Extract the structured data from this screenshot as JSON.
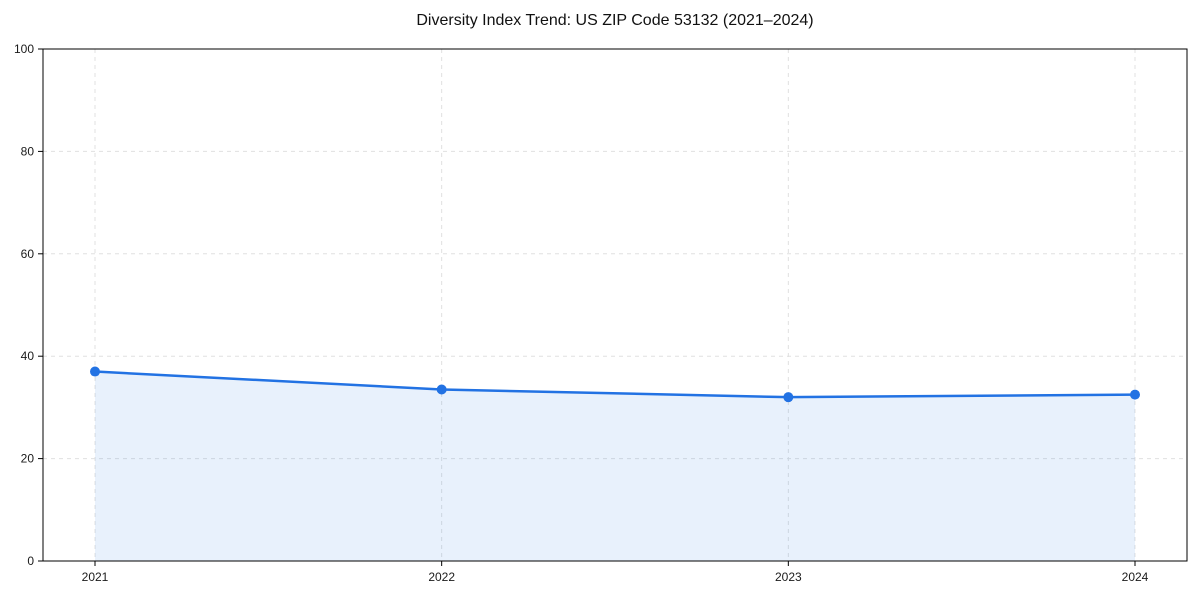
{
  "figure": {
    "background": "#ffffff"
  },
  "chart_data": {
    "type": "area",
    "title": "Diversity Index Trend: US ZIP Code 53132 (2021–2024)",
    "x": [
      2021,
      2022,
      2023,
      2024
    ],
    "xtick_labels": [
      "2021",
      "2022",
      "2023",
      "2024"
    ],
    "series": [
      {
        "name": "Diversity Index",
        "values": [
          37,
          33.5,
          32,
          32.5
        ]
      }
    ],
    "xlabel": "",
    "ylabel": "",
    "ylim": [
      0,
      100
    ],
    "yticks": [
      0,
      20,
      40,
      60,
      80,
      100
    ],
    "grid": true,
    "grid_style": "dashed",
    "legend_position": "none",
    "colors": {
      "line": "#2272e3",
      "marker": "#2272e3",
      "fill": "rgba(34,114,227,0.10)",
      "grid": "#e0e0e0",
      "spine": "#000000",
      "tick_text": "#1a1a1a"
    }
  }
}
